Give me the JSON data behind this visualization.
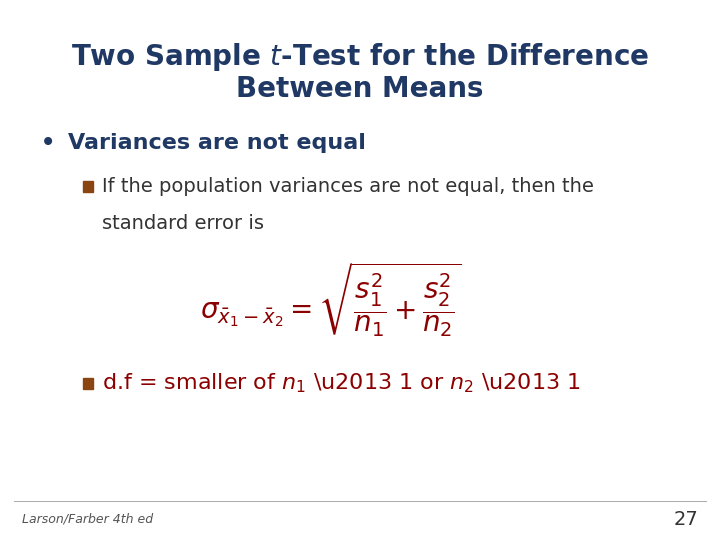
{
  "background_color": "#ffffff",
  "title_color": "#1F3864",
  "title_fontsize": 20,
  "bullet_color": "#1F3864",
  "bullet_text": "Variances are not equal",
  "bullet_fontsize": 16,
  "sub_bullet_color": "#333333",
  "sub_bullet_text1": "If the population variances are not equal, then the",
  "sub_bullet_text2": "standard error is",
  "sub_bullet_fontsize": 14,
  "square_color": "#8B4513",
  "formula_color": "#8B0000",
  "df_text_color": "#8B0000",
  "df_fontsize": 16,
  "footer_text": "Larson/Farber 4th ed",
  "footer_color": "#555555",
  "footer_fontsize": 9,
  "page_number": "27",
  "page_color": "#333333",
  "page_fontsize": 14
}
